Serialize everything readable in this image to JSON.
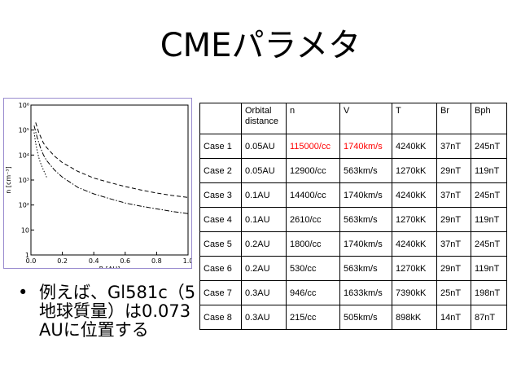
{
  "slide": {
    "title": "CMEパラメタ"
  },
  "bullet": {
    "symbol": "•",
    "text": "例えば、Gl581c（5地球質量）は0.073 AUに位置する"
  },
  "chart_data": {
    "type": "line",
    "xlabel": "R [AU]",
    "ylabel": "n [cm⁻³]",
    "xlim": [
      0.0,
      1.0
    ],
    "ylim_log10": [
      0,
      6
    ],
    "x_ticks": [
      "0.0",
      "0.2",
      "0.4",
      "0.6",
      "0.8",
      "1.0"
    ],
    "y_ticks": [
      "1",
      "10",
      "10²",
      "10³",
      "10⁴",
      "10⁵",
      "10⁶"
    ],
    "series": [
      {
        "style": "dashed",
        "x": [
          0.03,
          0.05,
          0.08,
          0.1,
          0.15,
          0.2,
          0.3,
          0.4,
          0.5,
          0.6,
          0.7,
          0.8,
          0.9,
          1.0
        ],
        "y": [
          200000,
          80000,
          30000,
          20000,
          9000,
          5000,
          2200,
          1200,
          800,
          550,
          400,
          300,
          240,
          200
        ]
      },
      {
        "style": "dash-dot",
        "x": [
          0.02,
          0.04,
          0.06,
          0.08,
          0.1,
          0.15,
          0.2,
          0.3,
          0.4,
          0.5,
          0.6,
          0.7,
          0.8,
          0.9,
          1.0
        ],
        "y": [
          150000,
          50000,
          20000,
          10000,
          6000,
          2500,
          1300,
          500,
          280,
          180,
          120,
          90,
          70,
          55,
          45
        ]
      },
      {
        "style": "dotted",
        "x": [
          0.02,
          0.03,
          0.04,
          0.05,
          0.06,
          0.07,
          0.08,
          0.1
        ],
        "y": [
          80000,
          30000,
          15000,
          8000,
          5000,
          3500,
          2500,
          1300
        ]
      }
    ]
  },
  "table": {
    "headers": [
      "",
      "Orbital distance",
      "n",
      "V",
      "T",
      "Br",
      "Bph"
    ],
    "rows": [
      [
        "Case 1",
        "0.05AU",
        "115000/cc",
        "1740km/s",
        "4240kK",
        "37nT",
        "245nT"
      ],
      [
        "Case 2",
        "0.05AU",
        "12900/cc",
        "563km/s",
        "1270kK",
        "29nT",
        "119nT"
      ],
      [
        "Case 3",
        "0.1AU",
        "14400/cc",
        "1740km/s",
        "4240kK",
        "37nT",
        "245nT"
      ],
      [
        "Case 4",
        "0.1AU",
        "2610/cc",
        "563km/s",
        "1270kK",
        "29nT",
        "119nT"
      ],
      [
        "Case 5",
        "0.2AU",
        "1800/cc",
        "1740km/s",
        "4240kK",
        "37nT",
        "245nT"
      ],
      [
        "Case 6",
        "0.2AU",
        "530/cc",
        "563km/s",
        "1270kK",
        "29nT",
        "119nT"
      ],
      [
        "Case 7",
        "0.3AU",
        "946/cc",
        "1633km/s",
        "7390kK",
        "25nT",
        "198nT"
      ],
      [
        "Case 8",
        "0.3AU",
        "215/cc",
        "505km/s",
        "898kK",
        "14nT",
        "87nT"
      ]
    ],
    "highlight_color": "#ff0000"
  }
}
